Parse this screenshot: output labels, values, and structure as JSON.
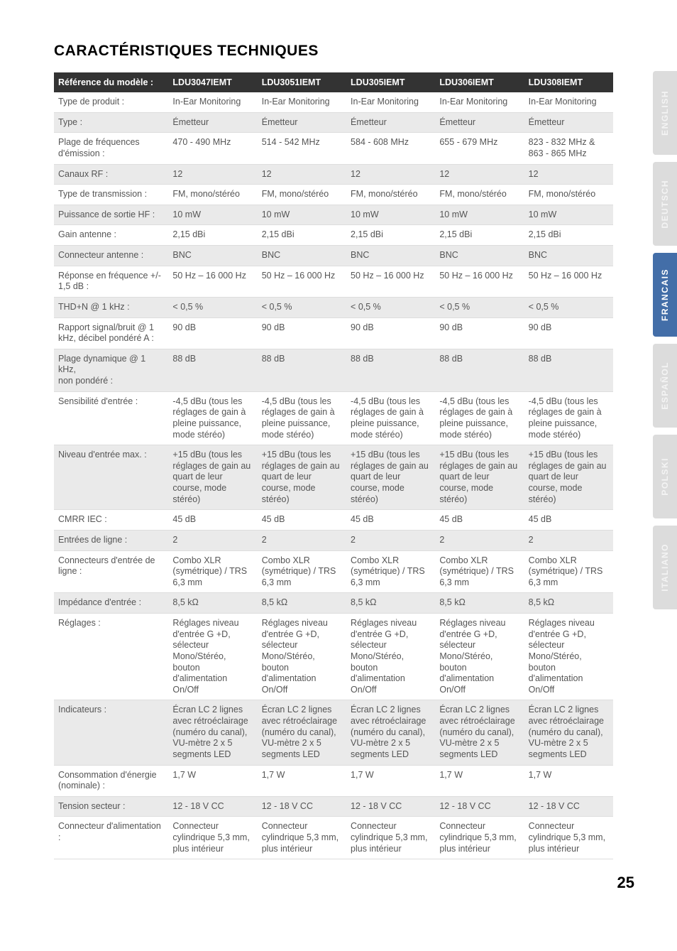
{
  "title": "CARACTÉRISTIQUES TECHNIQUES",
  "pagenum": "25",
  "tabs": [
    {
      "label": "ENGLISH",
      "active": false
    },
    {
      "label": "DEUTSCH",
      "active": false
    },
    {
      "label": "FRANCAIS",
      "active": true
    },
    {
      "label": "ESPAÑOL",
      "active": false
    },
    {
      "label": "POLSKI",
      "active": false
    },
    {
      "label": "ITALIANO",
      "active": false
    }
  ],
  "headers": [
    "Référence du modèle :",
    "LDU3047IEMT",
    "LDU3051IEMT",
    "LDU305IEMT",
    "LDU306IEMT",
    "LDU308IEMT"
  ],
  "rows": [
    {
      "shaded": false,
      "cells": [
        "Type de produit :",
        "In-Ear Monitoring",
        "In-Ear Monitoring",
        "In-Ear Monitoring",
        "In-Ear Monitoring",
        "In-Ear Monitoring"
      ]
    },
    {
      "shaded": true,
      "cells": [
        "Type :",
        "Émetteur",
        "Émetteur",
        "Émetteur",
        "Émetteur",
        "Émetteur"
      ]
    },
    {
      "shaded": false,
      "cells": [
        "Plage de fréquences d'émission :",
        "470 - 490 MHz",
        "514 - 542 MHz",
        "584 - 608 MHz",
        "655 - 679 MHz",
        "823 - 832 MHz & 863 - 865 MHz"
      ]
    },
    {
      "shaded": true,
      "cells": [
        "Canaux RF :",
        "12",
        "12",
        "12",
        "12",
        "12"
      ]
    },
    {
      "shaded": false,
      "cells": [
        "Type de transmission :",
        "FM, mono/stéréo",
        "FM, mono/stéréo",
        "FM, mono/stéréo",
        "FM, mono/stéréo",
        "FM, mono/stéréo"
      ]
    },
    {
      "shaded": true,
      "cells": [
        "Puissance de sortie HF :",
        "10 mW",
        "10 mW",
        "10 mW",
        "10 mW",
        "10 mW"
      ]
    },
    {
      "shaded": false,
      "cells": [
        "Gain antenne :",
        "2,15 dBi",
        "2,15 dBi",
        "2,15 dBi",
        "2,15 dBi",
        "2,15 dBi"
      ]
    },
    {
      "shaded": true,
      "cells": [
        "Connecteur antenne :",
        "BNC",
        "BNC",
        "BNC",
        "BNC",
        "BNC"
      ]
    },
    {
      "shaded": false,
      "cells": [
        "Réponse en fréquence +/- 1,5 dB :",
        "50 Hz – 16 000 Hz",
        "50 Hz – 16 000 Hz",
        "50 Hz – 16 000 Hz",
        "50 Hz – 16 000 Hz",
        "50 Hz – 16 000 Hz"
      ]
    },
    {
      "shaded": true,
      "cells": [
        "THD+N @ 1 kHz :",
        "< 0,5 %",
        "< 0,5 %",
        "< 0,5 %",
        "< 0,5 %",
        "< 0,5 %"
      ]
    },
    {
      "shaded": false,
      "cells": [
        "Rapport signal/bruit @ 1 kHz, décibel pondéré A :",
        "90 dB",
        "90 dB",
        "90 dB",
        "90 dB",
        "90 dB"
      ]
    },
    {
      "shaded": true,
      "cells": [
        "Plage dynamique @ 1 kHz,\nnon pondéré :",
        "88 dB",
        "88 dB",
        "88 dB",
        "88 dB",
        "88 dB"
      ]
    },
    {
      "shaded": false,
      "cells": [
        "Sensibilité d'entrée :",
        "-4,5 dBu (tous les réglages de gain à pleine puissance, mode stéréo)",
        "-4,5 dBu (tous les réglages de gain à pleine puissance, mode stéréo)",
        "-4,5 dBu (tous les réglages de gain à pleine puissance, mode stéréo)",
        "-4,5 dBu (tous les réglages de gain à pleine puissance, mode stéréo)",
        "-4,5 dBu (tous les réglages de gain à pleine puissance, mode stéréo)"
      ]
    },
    {
      "shaded": true,
      "cells": [
        "Niveau d'entrée max. :",
        "+15 dBu (tous les réglages de gain au quart de leur course, mode stéréo)",
        "+15 dBu (tous les réglages de gain au quart de leur course, mode stéréo)",
        "+15 dBu (tous les réglages de gain au quart de leur course, mode stéréo)",
        "+15 dBu (tous les réglages de gain au quart de leur course, mode stéréo)",
        "+15 dBu (tous les réglages de gain au quart de leur course, mode stéréo)"
      ]
    },
    {
      "shaded": false,
      "cells": [
        "CMRR IEC :",
        "45 dB",
        "45 dB",
        "45 dB",
        "45 dB",
        "45 dB"
      ]
    },
    {
      "shaded": true,
      "cells": [
        "Entrées de ligne :",
        "2",
        "2",
        "2",
        "2",
        "2"
      ]
    },
    {
      "shaded": false,
      "cells": [
        "Connecteurs d'entrée de ligne :",
        "Combo XLR (symétrique) / TRS 6,3 mm",
        "Combo XLR (symétrique) / TRS 6,3 mm",
        "Combo XLR (symétrique) / TRS 6,3 mm",
        "Combo XLR (symétrique) / TRS 6,3 mm",
        "Combo XLR (symétrique) / TRS 6,3 mm"
      ]
    },
    {
      "shaded": true,
      "cells": [
        "Impédance d'entrée :",
        "8,5 kΩ",
        "8,5 kΩ",
        "8,5 kΩ",
        "8,5 kΩ",
        "8,5 kΩ"
      ]
    },
    {
      "shaded": false,
      "cells": [
        "Réglages :",
        "Réglages niveau d'entrée G +D, sélecteur Mono/Stéréo, bouton d'alimentation On/Off",
        "Réglages niveau d'entrée G +D, sélecteur Mono/Stéréo, bouton d'alimentation On/Off",
        "Réglages niveau d'entrée G +D, sélecteur Mono/Stéréo, bouton d'alimentation On/Off",
        "Réglages niveau d'entrée G +D, sélecteur Mono/Stéréo, bouton d'alimentation On/Off",
        "Réglages niveau d'entrée G +D, sélecteur Mono/Stéréo, bouton d'alimentation On/Off"
      ]
    },
    {
      "shaded": true,
      "cells": [
        "Indicateurs :",
        "Écran LC 2 lignes avec rétroéclairage (numéro du canal), VU-mètre 2 x 5 segments LED",
        "Écran LC 2 lignes avec rétroéclairage (numéro du canal), VU-mètre 2 x 5 segments LED",
        "Écran LC 2 lignes avec rétroéclairage (numéro du canal), VU-mètre 2 x 5 segments LED",
        "Écran LC 2 lignes avec rétroéclairage (numéro du canal), VU-mètre 2 x 5 segments LED",
        "Écran LC 2 lignes avec rétroéclairage (numéro du canal), VU-mètre 2 x 5 segments LED"
      ]
    },
    {
      "shaded": false,
      "cells": [
        "Consommation d'énergie (nominale) :",
        "1,7 W",
        "1,7 W",
        "1,7 W",
        "1,7 W",
        "1,7 W"
      ]
    },
    {
      "shaded": true,
      "cells": [
        "Tension secteur :",
        "12 - 18 V CC",
        "12 - 18 V CC",
        "12 - 18 V CC",
        "12 - 18 V CC",
        "12 - 18 V CC"
      ]
    },
    {
      "shaded": false,
      "cells": [
        "Connecteur d'alimentation :",
        "Connecteur cylindrique 5,3 mm, plus intérieur",
        "Connecteur cylindrique 5,3 mm, plus intérieur",
        "Connecteur cylindrique 5,3 mm, plus intérieur",
        "Connecteur cylindrique 5,3 mm, plus intérieur",
        "Connecteur cylindrique 5,3 mm, plus intérieur"
      ]
    }
  ]
}
